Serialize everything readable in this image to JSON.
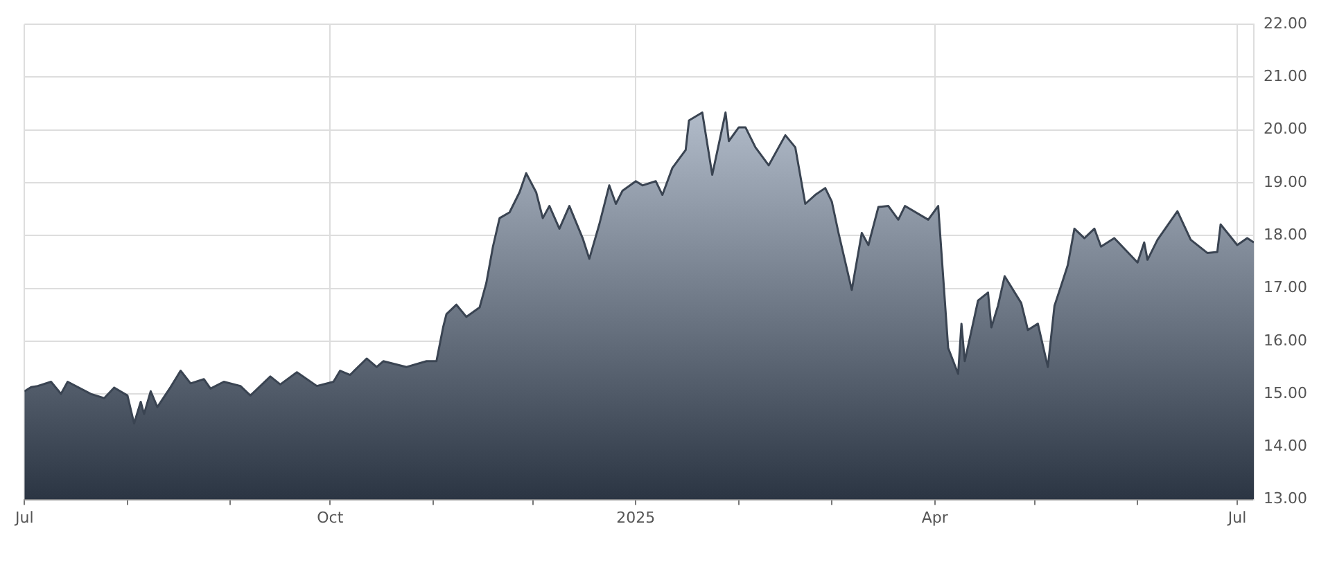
{
  "chart_data": {
    "type": "area",
    "x": [
      "2024-07-01",
      "2024-07-03",
      "2024-07-05",
      "2024-07-09",
      "2024-07-12",
      "2024-07-14",
      "2024-07-21",
      "2024-07-25",
      "2024-07-28",
      "2024-08-01",
      "2024-08-03",
      "2024-08-05",
      "2024-08-06",
      "2024-08-08",
      "2024-08-10",
      "2024-08-14",
      "2024-08-17",
      "2024-08-20",
      "2024-08-24",
      "2024-08-26",
      "2024-08-30",
      "2024-09-04",
      "2024-09-07",
      "2024-09-13",
      "2024-09-16",
      "2024-09-21",
      "2024-09-27",
      "2024-10-02",
      "2024-10-04",
      "2024-10-07",
      "2024-10-12",
      "2024-10-15",
      "2024-10-17",
      "2024-10-24",
      "2024-10-30",
      "2024-11-02",
      "2024-11-04",
      "2024-11-05",
      "2024-11-08",
      "2024-11-11",
      "2024-11-15",
      "2024-11-17",
      "2024-11-19",
      "2024-11-21",
      "2024-11-24",
      "2024-11-27",
      "2024-11-29",
      "2024-12-02",
      "2024-12-04",
      "2024-12-06",
      "2024-12-09",
      "2024-12-12",
      "2024-12-16",
      "2024-12-18",
      "2024-12-21",
      "2024-12-24",
      "2024-12-26",
      "2024-12-28",
      "2025-01-01",
      "2025-01-03",
      "2025-01-07",
      "2025-01-09",
      "2025-01-12",
      "2025-01-16",
      "2025-01-17",
      "2025-01-21",
      "2025-01-24",
      "2025-01-26",
      "2025-01-28",
      "2025-01-29",
      "2025-02-01",
      "2025-02-03",
      "2025-02-06",
      "2025-02-10",
      "2025-02-15",
      "2025-02-18",
      "2025-02-21",
      "2025-02-24",
      "2025-02-27",
      "2025-03-01",
      "2025-03-03",
      "2025-03-07",
      "2025-03-10",
      "2025-03-12",
      "2025-03-15",
      "2025-03-18",
      "2025-03-21",
      "2025-03-23",
      "2025-03-30",
      "2025-04-02",
      "2025-04-05",
      "2025-04-08",
      "2025-04-09",
      "2025-04-10",
      "2025-04-14",
      "2025-04-17",
      "2025-04-18",
      "2025-04-20",
      "2025-04-22",
      "2025-04-27",
      "2025-04-29",
      "2025-05-02",
      "2025-05-05",
      "2025-05-07",
      "2025-05-09",
      "2025-05-11",
      "2025-05-13",
      "2025-05-16",
      "2025-05-19",
      "2025-05-21",
      "2025-05-25",
      "2025-06-01",
      "2025-06-03",
      "2025-06-04",
      "2025-06-07",
      "2025-06-13",
      "2025-06-17",
      "2025-06-22",
      "2025-06-25",
      "2025-06-26",
      "2025-07-01",
      "2025-07-04",
      "2025-07-06"
    ],
    "series": [
      {
        "color": "#3a4452",
        "values": [
          15.05,
          15.13,
          15.15,
          15.23,
          15.0,
          15.23,
          15.0,
          14.92,
          15.12,
          14.97,
          14.44,
          14.85,
          14.62,
          15.05,
          14.75,
          15.13,
          15.44,
          15.2,
          15.28,
          15.1,
          15.23,
          15.15,
          14.97,
          15.33,
          15.18,
          15.41,
          15.15,
          15.23,
          15.44,
          15.36,
          15.67,
          15.51,
          15.62,
          15.51,
          15.62,
          15.62,
          16.26,
          16.51,
          16.69,
          16.46,
          16.64,
          17.1,
          17.79,
          18.33,
          18.44,
          18.82,
          19.18,
          18.82,
          18.33,
          18.56,
          18.13,
          18.56,
          17.95,
          17.56,
          18.21,
          18.95,
          18.6,
          18.85,
          19.03,
          18.95,
          19.03,
          18.77,
          19.28,
          19.62,
          20.18,
          20.33,
          19.15,
          19.74,
          20.33,
          19.79,
          20.05,
          20.05,
          19.67,
          19.33,
          19.9,
          19.67,
          18.6,
          18.77,
          18.9,
          18.64,
          18.05,
          16.97,
          18.05,
          17.82,
          18.54,
          18.56,
          18.3,
          18.56,
          18.3,
          18.56,
          15.87,
          15.38,
          16.33,
          15.62,
          16.77,
          16.92,
          16.26,
          16.67,
          17.23,
          16.72,
          16.21,
          16.33,
          15.51,
          16.67,
          17.05,
          17.44,
          18.13,
          17.95,
          18.13,
          17.79,
          17.95,
          17.49,
          17.87,
          17.54,
          17.92,
          18.46,
          17.92,
          17.67,
          17.69,
          18.21,
          17.82,
          17.95,
          17.87
        ]
      }
    ],
    "xlim": [
      "2024-07-01",
      "2025-07-06"
    ],
    "xticks": [
      {
        "value": "2024-07-01",
        "label": "Jul"
      },
      {
        "value": "2024-08-01",
        "label": null
      },
      {
        "value": "2024-09-01",
        "label": null
      },
      {
        "value": "2024-10-01",
        "label": "Oct"
      },
      {
        "value": "2024-11-01",
        "label": null
      },
      {
        "value": "2024-12-01",
        "label": null
      },
      {
        "value": "2025-01-01",
        "label": "2025"
      },
      {
        "value": "2025-02-01",
        "label": null
      },
      {
        "value": "2025-03-01",
        "label": null
      },
      {
        "value": "2025-04-01",
        "label": "Apr"
      },
      {
        "value": "2025-05-01",
        "label": null
      },
      {
        "value": "2025-06-01",
        "label": null
      },
      {
        "value": "2025-07-01",
        "label": "Jul"
      }
    ],
    "ylim": [
      13,
      22
    ],
    "yticks": [
      {
        "value": 13,
        "label": "13.00"
      },
      {
        "value": 14,
        "label": "14.00"
      },
      {
        "value": 15,
        "label": "15.00"
      },
      {
        "value": 16,
        "label": "16.00"
      },
      {
        "value": 17,
        "label": "17.00"
      },
      {
        "value": 18,
        "label": "18.00"
      },
      {
        "value": 19,
        "label": "19.00"
      },
      {
        "value": 20,
        "label": "20.00"
      },
      {
        "value": 21,
        "label": "21.00"
      },
      {
        "value": 22,
        "label": "22.00"
      }
    ],
    "grid": true,
    "legend": false,
    "marker": "none",
    "line_style": "solid"
  }
}
